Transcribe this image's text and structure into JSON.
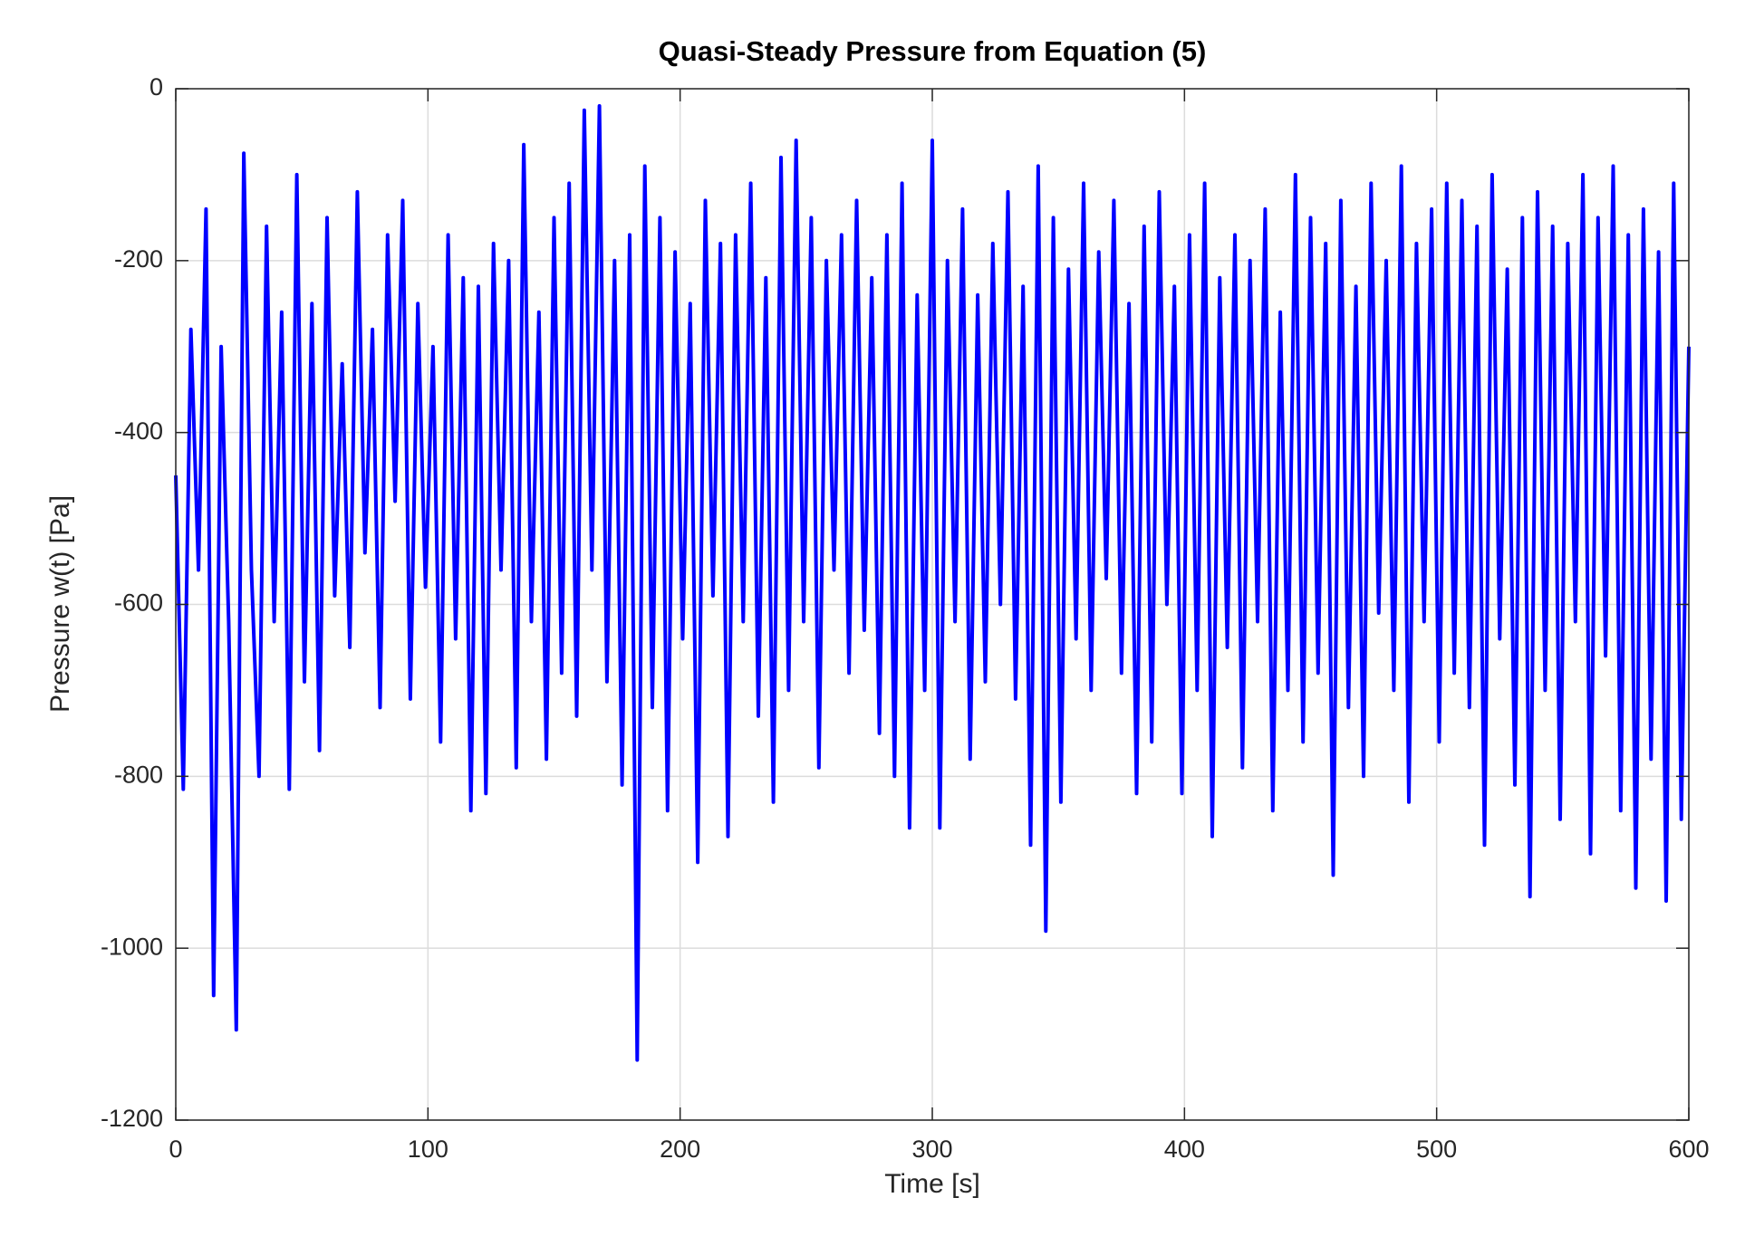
{
  "chart_data": {
    "type": "line",
    "title": "Quasi-Steady Pressure from Equation (5)",
    "x_label": "Time [s]",
    "y_label": "Pressure w(t) [Pa]",
    "x": [
      0,
      3,
      6,
      9,
      12,
      15,
      18,
      21,
      24,
      27,
      30,
      33,
      36,
      39,
      42,
      45,
      48,
      51,
      54,
      57,
      60,
      63,
      66,
      69,
      72,
      75,
      78,
      81,
      84,
      87,
      90,
      93,
      96,
      99,
      102,
      105,
      108,
      111,
      114,
      117,
      120,
      123,
      126,
      129,
      132,
      135,
      138,
      141,
      144,
      147,
      150,
      153,
      156,
      159,
      162,
      165,
      168,
      171,
      174,
      177,
      180,
      183,
      186,
      189,
      192,
      195,
      198,
      201,
      204,
      207,
      210,
      213,
      216,
      219,
      222,
      225,
      228,
      231,
      234,
      237,
      240,
      243,
      246,
      249,
      252,
      255,
      258,
      261,
      264,
      267,
      270,
      273,
      276,
      279,
      282,
      285,
      288,
      291,
      294,
      297,
      300,
      303,
      306,
      309,
      312,
      315,
      318,
      321,
      324,
      327,
      330,
      333,
      336,
      339,
      342,
      345,
      348,
      351,
      354,
      357,
      360,
      363,
      366,
      369,
      372,
      375,
      378,
      381,
      384,
      387,
      390,
      393,
      396,
      399,
      402,
      405,
      408,
      411,
      414,
      417,
      420,
      423,
      426,
      429,
      432,
      435,
      438,
      441,
      444,
      447,
      450,
      453,
      456,
      459,
      462,
      465,
      468,
      471,
      474,
      477,
      480,
      483,
      486,
      489,
      492,
      495,
      498,
      501,
      504,
      507,
      510,
      513,
      516,
      519,
      522,
      525,
      528,
      531,
      534,
      537,
      540,
      543,
      546,
      549,
      552,
      555,
      558,
      561,
      564,
      567,
      570,
      573,
      576,
      579,
      582,
      585,
      588,
      591,
      594,
      597,
      600
    ],
    "series": [
      {
        "name": "w(t)",
        "color": "#0000ff",
        "values": [
          -450,
          -815,
          -280,
          -560,
          -140,
          -1055,
          -300,
          -620,
          -1095,
          -75,
          -560,
          -800,
          -160,
          -620,
          -260,
          -815,
          -100,
          -690,
          -250,
          -770,
          -150,
          -590,
          -320,
          -650,
          -120,
          -540,
          -280,
          -720,
          -170,
          -480,
          -130,
          -710,
          -250,
          -580,
          -300,
          -760,
          -170,
          -640,
          -220,
          -840,
          -230,
          -820,
          -180,
          -560,
          -200,
          -790,
          -65,
          -620,
          -260,
          -780,
          -150,
          -680,
          -110,
          -730,
          -25,
          -560,
          -20,
          -690,
          -200,
          -810,
          -170,
          -1130,
          -90,
          -720,
          -150,
          -840,
          -190,
          -640,
          -250,
          -900,
          -130,
          -590,
          -180,
          -870,
          -170,
          -620,
          -110,
          -730,
          -220,
          -830,
          -80,
          -700,
          -60,
          -620,
          -150,
          -790,
          -200,
          -560,
          -170,
          -680,
          -130,
          -630,
          -220,
          -750,
          -170,
          -800,
          -110,
          -860,
          -240,
          -700,
          -60,
          -860,
          -200,
          -620,
          -140,
          -780,
          -240,
          -690,
          -180,
          -600,
          -120,
          -710,
          -230,
          -880,
          -90,
          -980,
          -150,
          -830,
          -210,
          -640,
          -110,
          -700,
          -190,
          -570,
          -130,
          -680,
          -250,
          -820,
          -160,
          -760,
          -120,
          -600,
          -230,
          -820,
          -170,
          -700,
          -110,
          -870,
          -220,
          -650,
          -170,
          -790,
          -200,
          -620,
          -140,
          -840,
          -260,
          -700,
          -100,
          -760,
          -150,
          -680,
          -180,
          -915,
          -130,
          -720,
          -230,
          -800,
          -110,
          -610,
          -200,
          -700,
          -90,
          -830,
          -180,
          -620,
          -140,
          -760,
          -110,
          -680,
          -130,
          -720,
          -160,
          -880,
          -100,
          -640,
          -210,
          -810,
          -150,
          -940,
          -120,
          -700,
          -160,
          -850,
          -180,
          -620,
          -100,
          -890,
          -150,
          -660,
          -90,
          -840,
          -170,
          -930,
          -140,
          -780,
          -190,
          -945,
          -110,
          -850,
          -300
        ]
      }
    ],
    "xlim": [
      0,
      600
    ],
    "xticks": [
      0,
      100,
      200,
      300,
      400,
      500,
      600
    ],
    "ylim": [
      -1200,
      0
    ],
    "yticks": [
      -1200,
      -1000,
      -800,
      -600,
      -400,
      -200,
      0
    ],
    "grid": true
  }
}
